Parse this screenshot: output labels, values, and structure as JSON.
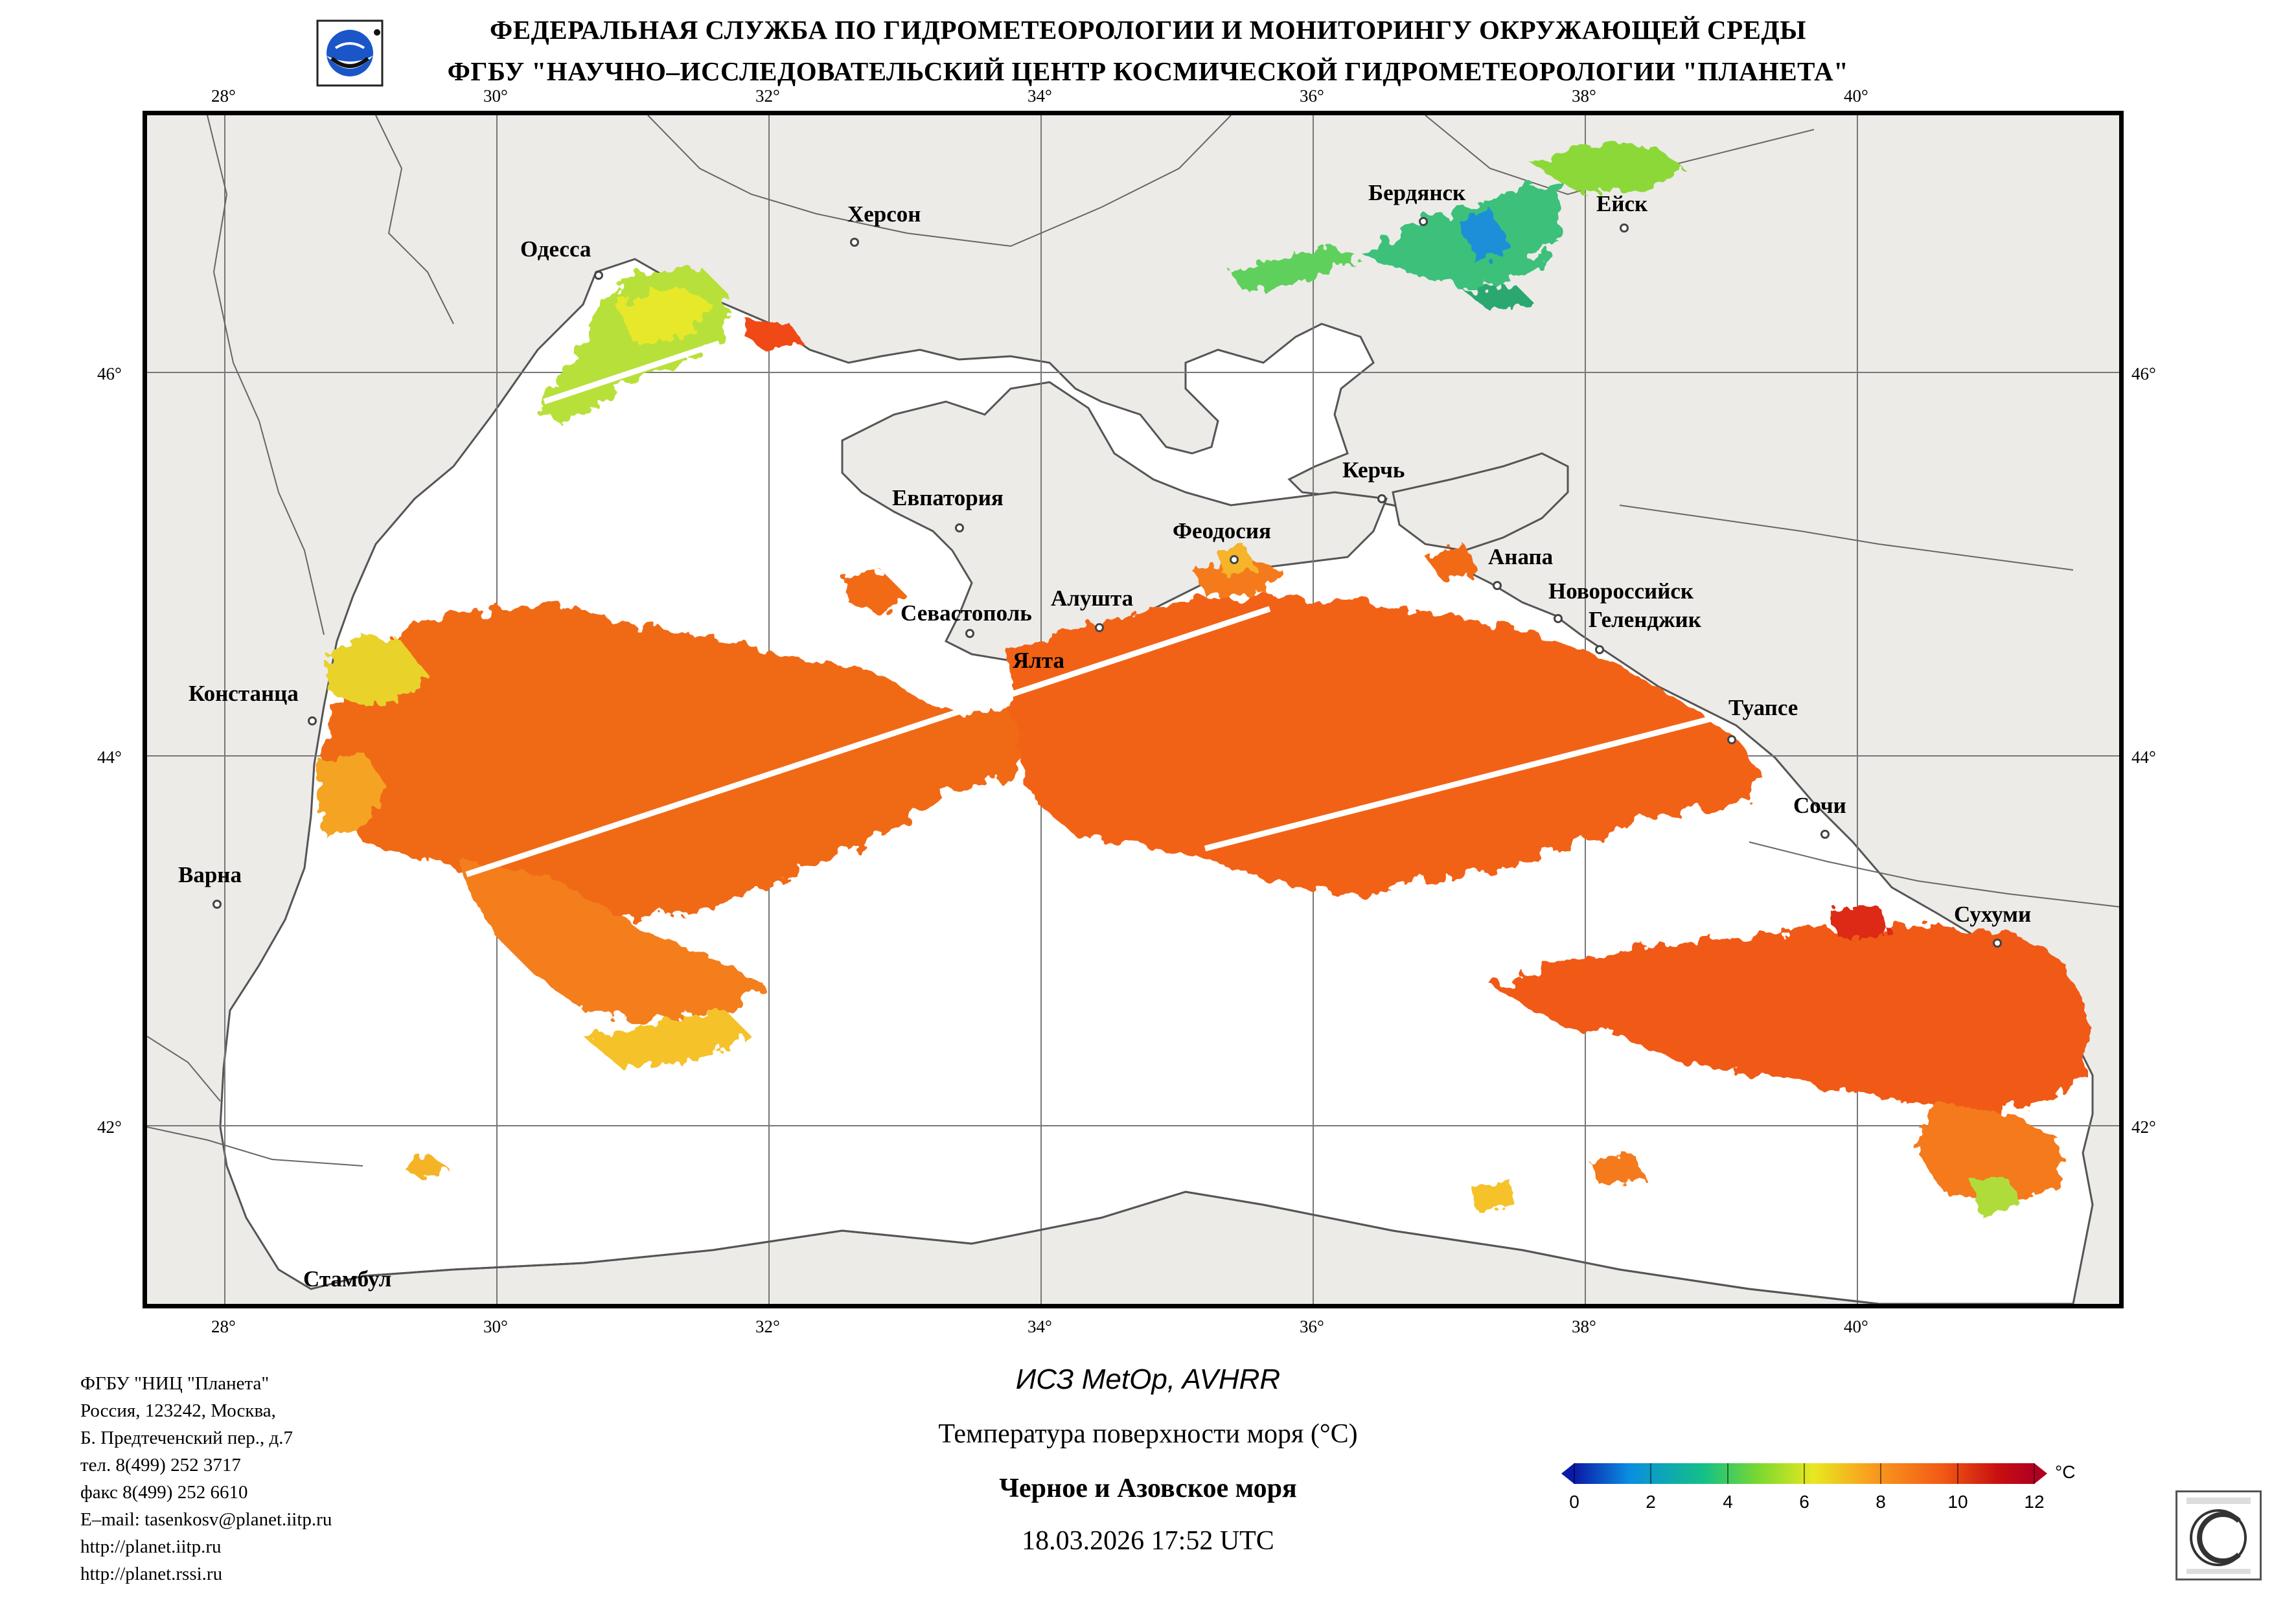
{
  "header": {
    "line1": "ФЕДЕРАЛЬНАЯ СЛУЖБА ПО ГИДРОМЕТЕОРОЛОГИИ И МОНИТОРИНГУ ОКРУЖАЮЩЕЙ СРЕДЫ",
    "line2": "ФГБУ \"НАУЧНО–ИССЛЕДОВАТЕЛЬСКИЙ ЦЕНТР КОСМИЧЕСКОЙ ГИДРОМЕТЕОРОЛОГИИ \"ПЛАНЕТА\""
  },
  "map": {
    "lon_labels": [
      "28°",
      "30°",
      "32°",
      "34°",
      "36°",
      "38°",
      "40°"
    ],
    "lat_labels": [
      "46°",
      "44°",
      "42°"
    ],
    "cities": {
      "odessa": "Одесса",
      "kherson": "Херсон",
      "berdyansk": "Бердянск",
      "yeysk": "Ейск",
      "kerch": "Керчь",
      "evpatoria": "Евпатория",
      "feodosia": "Феодосия",
      "anapa": "Анапа",
      "novorossiysk": "Новороссийск",
      "gelendzhik": "Геленджик",
      "sevastopol": "Севастополь",
      "alushta": "Алушта",
      "yalta": "Ялта",
      "constanta": "Констанца",
      "tuapse": "Туапсе",
      "sochi": "Сочи",
      "varna": "Варна",
      "sukhumi": "Сухуми",
      "istanbul": "Стамбул"
    },
    "colors": {
      "land": "#ecebe8",
      "sea_nodata": "#ffffff",
      "grid": "#777777",
      "coast": "#555555"
    }
  },
  "footer": {
    "org": "ФГБУ \"НИЦ \"Планета\"",
    "address1": "Россия, 123242, Москва,",
    "address2": "Б. Предтеченский пер., д.7",
    "phone": "тел. 8(499) 252 3717",
    "fax": "факс 8(499) 252 6610",
    "email": "E–mail: tasenkosv@planet.iitp.ru",
    "url1": "http://planet.iitp.ru",
    "url2": "http://planet.rssi.ru"
  },
  "product": {
    "satellite": "ИСЗ MetOp, AVHRR",
    "title": "Температура поверхности моря (°C)",
    "region": "Черное и Азовское моря",
    "datetime": "18.03.2026 17:52 UTC"
  },
  "colorbar": {
    "unit": "°C",
    "ticks": [
      "0",
      "2",
      "4",
      "6",
      "8",
      "10",
      "12"
    ],
    "range": [
      0,
      12
    ],
    "colors": [
      "#0a1aa8",
      "#0a8ee0",
      "#12c088",
      "#7ad830",
      "#e8e820",
      "#f8a020",
      "#f25a14",
      "#c81010",
      "#b00020"
    ]
  }
}
